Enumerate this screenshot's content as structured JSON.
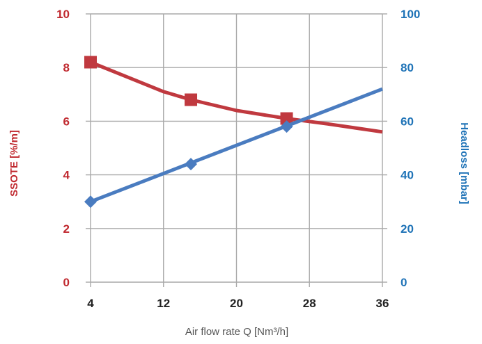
{
  "chart_data": {
    "type": "line",
    "xlabel": "Air flow rate Q [Nm³/h]",
    "x_ticks": [
      4,
      12,
      20,
      28,
      36
    ],
    "xlim": [
      4,
      36
    ],
    "grid": true,
    "legend": "none",
    "y_left": {
      "label": "SSOTE [%/m]",
      "ticks": [
        0,
        2,
        4,
        6,
        8,
        10
      ],
      "ylim": [
        0,
        10
      ],
      "color": "#c0292f"
    },
    "y_right": {
      "label": "Headloss [mbar]",
      "ticks": [
        "0",
        "20",
        "40",
        "60",
        "80",
        "100"
      ],
      "ylim": [
        0,
        100
      ],
      "color": "#1f73b7"
    },
    "series": [
      {
        "axis": "left",
        "color": "#c0393f",
        "marker": "square",
        "points": [
          [
            4,
            8.2
          ],
          [
            15,
            6.8
          ],
          [
            25.5,
            6.1
          ]
        ],
        "line_x": [
          4,
          8,
          12,
          15,
          20,
          25.5,
          30,
          36
        ],
        "line_y": [
          8.2,
          7.65,
          7.1,
          6.8,
          6.4,
          6.1,
          5.9,
          5.6
        ]
      },
      {
        "axis": "right",
        "color": "#4a7cc0",
        "marker": "diamond",
        "points": [
          [
            4,
            30
          ],
          [
            15,
            44
          ],
          [
            25.5,
            58
          ]
        ],
        "line_x": [
          4,
          36
        ],
        "line_y": [
          30,
          72
        ]
      }
    ]
  }
}
